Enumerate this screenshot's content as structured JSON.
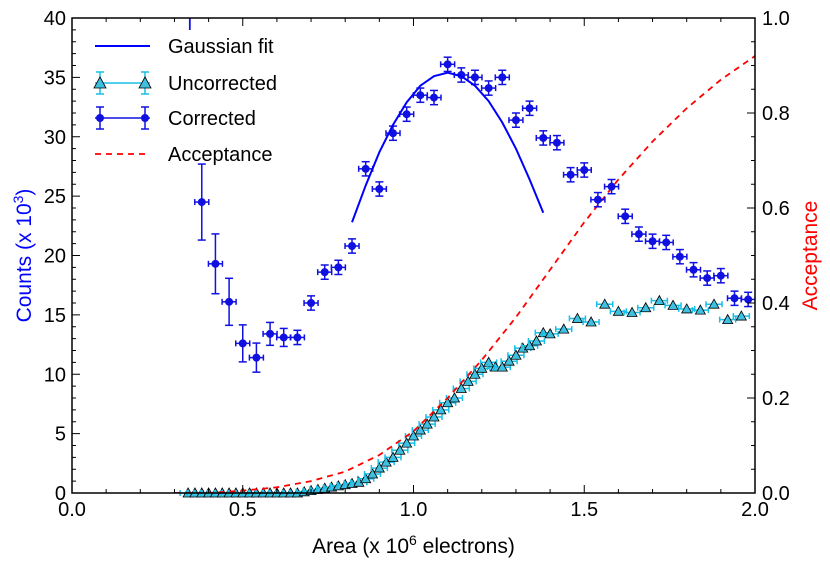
{
  "chart_data": {
    "type": "scatter",
    "xlabel_prefix": "Area (x 10",
    "xlabel_exp": "6",
    "xlabel_suffix": " electrons)",
    "ylabel_prefix": "Counts (x 10",
    "ylabel_exp": "3",
    "ylabel_suffix": ")",
    "y2label": "Acceptance",
    "xlim": [
      0.0,
      2.0
    ],
    "ylim": [
      0,
      40
    ],
    "y2lim": [
      0.0,
      1.0
    ],
    "xticks": [
      "0.0",
      "0.5",
      "1.0",
      "1.5",
      "2.0"
    ],
    "yticks": [
      "0",
      "5",
      "10",
      "15",
      "20",
      "25",
      "30",
      "35",
      "40"
    ],
    "y2ticks": [
      "0.0",
      "0.2",
      "0.4",
      "0.6",
      "0.8",
      "1.0"
    ],
    "grid": false,
    "legend_position": "top-left",
    "colors": {
      "gaussian": "#0000ff",
      "uncorrected_fill": "#40c0e0",
      "uncorrected_err": "#19bfe6",
      "corrected": "#1010e0",
      "acceptance": "#ff0000",
      "ylabel": "#0000ff",
      "y2label": "#ff0000"
    },
    "series": [
      {
        "name": "Gaussian fit",
        "kind": "line",
        "x": [
          0.82,
          0.86,
          0.9,
          0.94,
          0.98,
          1.02,
          1.06,
          1.1,
          1.14,
          1.18,
          1.22,
          1.26,
          1.3,
          1.34,
          1.38
        ],
        "y": [
          22.8,
          25.9,
          28.7,
          31.0,
          32.9,
          34.3,
          35.1,
          35.4,
          35.1,
          34.3,
          33.0,
          31.2,
          29.0,
          26.4,
          23.6
        ]
      },
      {
        "name": "Uncorrected",
        "kind": "marker_triangle",
        "x": [
          0.34,
          0.36,
          0.38,
          0.4,
          0.42,
          0.44,
          0.46,
          0.48,
          0.5,
          0.52,
          0.54,
          0.56,
          0.58,
          0.6,
          0.62,
          0.64,
          0.66,
          0.68,
          0.7,
          0.72,
          0.74,
          0.76,
          0.78,
          0.8,
          0.82,
          0.84,
          0.86,
          0.88,
          0.9,
          0.92,
          0.94,
          0.96,
          0.98,
          1.0,
          1.02,
          1.04,
          1.06,
          1.08,
          1.1,
          1.12,
          1.14,
          1.16,
          1.18,
          1.2,
          1.22,
          1.24,
          1.26,
          1.28,
          1.3,
          1.32,
          1.34,
          1.36,
          1.38,
          1.4,
          1.44,
          1.48,
          1.52,
          1.56,
          1.6,
          1.64,
          1.68,
          1.72,
          1.76,
          1.8,
          1.84,
          1.88,
          1.92,
          1.96
        ],
        "y": [
          0.0,
          0.0,
          0.0,
          0.0,
          0.0,
          0.0,
          0.0,
          0.0,
          0.0,
          0.0,
          0.0,
          0.0,
          0.0,
          0.0,
          0.0,
          0.0,
          0.0,
          0.1,
          0.2,
          0.3,
          0.4,
          0.5,
          0.6,
          0.7,
          0.8,
          0.9,
          1.2,
          1.6,
          2.1,
          2.6,
          3.0,
          3.6,
          4.2,
          4.8,
          5.3,
          5.8,
          6.4,
          7.0,
          7.6,
          8.0,
          8.8,
          9.4,
          10.0,
          10.5,
          11.0,
          10.6,
          10.6,
          11.1,
          11.6,
          12.2,
          12.4,
          12.8,
          13.5,
          13.4,
          13.8,
          14.7,
          14.4,
          15.9,
          15.3,
          15.2,
          15.6,
          16.2,
          15.8,
          15.5,
          15.4,
          15.9,
          14.6,
          14.9
        ]
      },
      {
        "name": "Corrected",
        "kind": "marker_circle",
        "x": [
          0.38,
          0.42,
          0.46,
          0.5,
          0.54,
          0.58,
          0.62,
          0.66,
          0.7,
          0.74,
          0.78,
          0.82,
          0.86,
          0.9,
          0.94,
          0.98,
          1.02,
          1.06,
          1.1,
          1.14,
          1.18,
          1.22,
          1.26,
          1.3,
          1.34,
          1.38,
          1.42,
          1.46,
          1.5,
          1.54,
          1.58,
          1.62,
          1.66,
          1.7,
          1.74,
          1.78,
          1.82,
          1.86,
          1.9,
          1.94,
          1.98
        ],
        "y": [
          24.5,
          19.3,
          16.1,
          12.6,
          11.4,
          13.4,
          13.1,
          13.1,
          16.0,
          18.6,
          19.0,
          20.8,
          27.3,
          25.6,
          30.3,
          31.9,
          33.5,
          33.3,
          36.1,
          35.2,
          35.0,
          34.1,
          35.0,
          31.4,
          32.4,
          29.9,
          29.5,
          26.8,
          27.2,
          24.7,
          25.8,
          23.3,
          21.8,
          21.2,
          21.1,
          19.9,
          18.8,
          18.1,
          18.3,
          16.4,
          16.3
        ]
      },
      {
        "name": "Acceptance",
        "kind": "dashed_line",
        "axis": "right",
        "x": [
          0.3,
          0.4,
          0.5,
          0.6,
          0.7,
          0.8,
          0.9,
          1.0,
          1.1,
          1.2,
          1.3,
          1.4,
          1.5,
          1.6,
          1.7,
          1.8,
          1.9,
          2.0
        ],
        "y": [
          0.0,
          0.0,
          0.005,
          0.012,
          0.025,
          0.045,
          0.08,
          0.13,
          0.2,
          0.28,
          0.37,
          0.47,
          0.57,
          0.66,
          0.74,
          0.81,
          0.87,
          0.92
        ]
      }
    ]
  }
}
